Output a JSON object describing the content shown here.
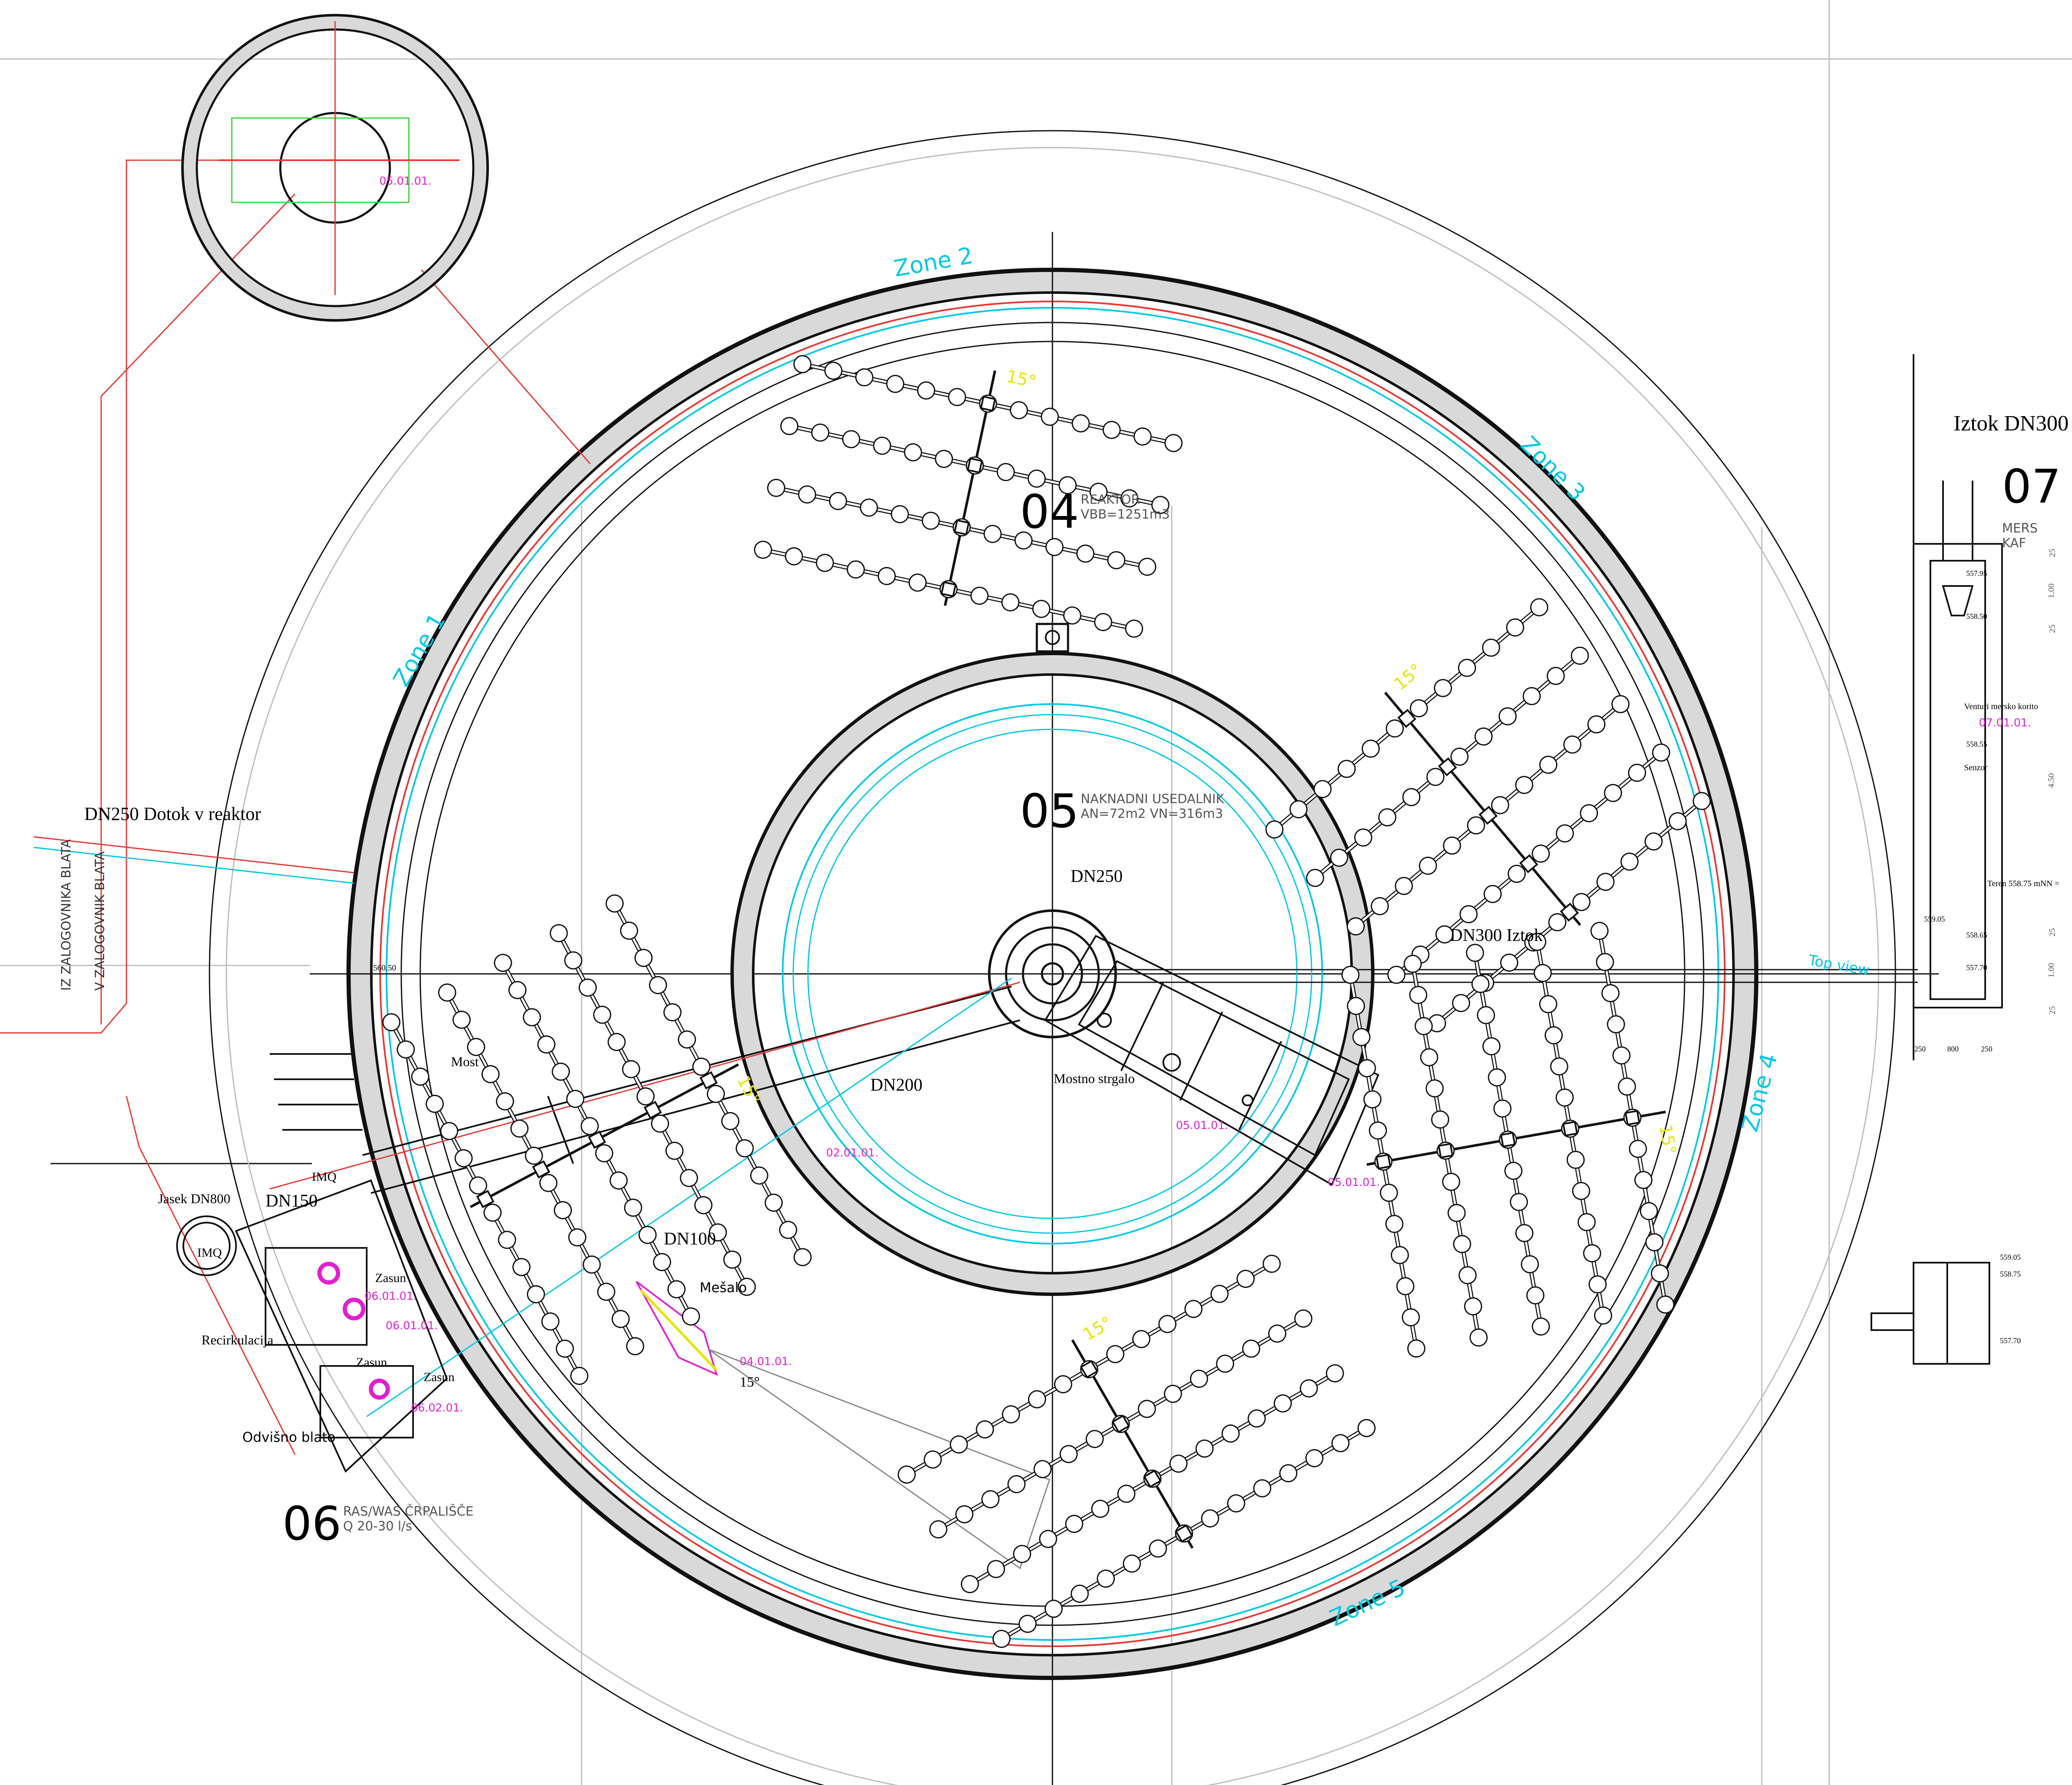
{
  "sections": {
    "s04": {
      "number": "04",
      "title": "REAKTOR",
      "detail": "VBB=1251m3"
    },
    "s05": {
      "number": "05",
      "title": "NAKNADNI USEDALNIK",
      "detail": "AN=72m2  VN=316m3"
    },
    "s06": {
      "number": "06",
      "title": "RAS/WAS ČRPALIŠČE",
      "detail": "Q 20-30 l/s"
    },
    "s07": {
      "number": "07",
      "title": "MERS",
      "detail": "KAF"
    }
  },
  "labels": {
    "dotok": "DN250 Dotok v reaktor",
    "iz_zalogovnika": "IZ ZALOGOVNIKA BLATA",
    "v_zalogovnik": "V ZALOGOVNIK BLATA",
    "most": "Most",
    "dn250": "DN250",
    "dn300_iztok": "DN300 Iztok",
    "dn200": "DN200",
    "dn100": "DN100",
    "dn150": "DN150",
    "mostno_strgalo": "Mostno strgalo",
    "mesalo": "Mešalo",
    "angle": "15°",
    "jasek": "Jasek DN800",
    "imq1": "IMQ",
    "imq2": "IMQ",
    "recirkulacija": "Recirkulacija",
    "odvisno_blato": "Odvišno blato",
    "zasun1": "Zasun",
    "zasun2": "Zasun",
    "zasun3": "Zasun",
    "top_view": "Top view",
    "elev_56050": "560.50",
    "iztok_dn300": "Iztok DN300",
    "venturi": "Venturi mersko korito",
    "senzor": "Senzor",
    "teren": "Teren 558.75 mNN ="
  },
  "zones": [
    "Zone 1",
    "Zone 2",
    "Zone 3",
    "Zone 4",
    "Zone 5"
  ],
  "angle_tag": "15°",
  "codes": {
    "c1": "05.01.01.",
    "c2": "05.01.01.",
    "c3": "05.01.01.",
    "c4": "02.01.01.",
    "c5": "04.01.01.",
    "c6": "06.01.01.",
    "c7": "06.01.01.",
    "c8": "06.02.01.",
    "c9": "07.01.01."
  },
  "section_detail": {
    "elevations": [
      "557.95",
      "558.50",
      "558.55",
      "559.05",
      "558.65",
      "557.70"
    ],
    "dims_v": [
      "25",
      "1.00",
      "25",
      "4.50",
      "25",
      "1.00",
      "25"
    ],
    "dims_h": [
      "250",
      "800",
      "250"
    ],
    "lower_elevs": [
      "559.05",
      "558.75",
      "557.70"
    ]
  },
  "colors": {
    "pipe_red": "#e53935",
    "water_cyan": "#00c8e6",
    "code_magenta": "#e020d0",
    "zone_yellow": "#e6e600",
    "fittings_green": "#3cd23c"
  }
}
